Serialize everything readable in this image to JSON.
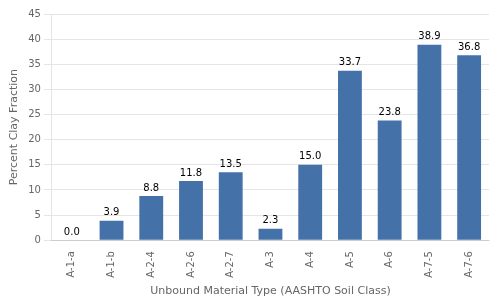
{
  "chart_data": {
    "type": "bar",
    "categories": [
      "A-1-a",
      "A-1-b",
      "A-2-4",
      "A-2-6",
      "A-2-7",
      "A-3",
      "A-4",
      "A-5",
      "A-6",
      "A-7-5",
      "A-7-6"
    ],
    "values": [
      0.0,
      3.9,
      8.8,
      11.8,
      13.5,
      2.3,
      15.0,
      33.7,
      23.8,
      38.9,
      36.8
    ],
    "value_labels": [
      "0.0",
      "3.9",
      "8.8",
      "11.8",
      "13.5",
      "2.3",
      "15.0",
      "33.7",
      "23.8",
      "38.9",
      "36.8"
    ],
    "data_labels": true,
    "color": "#4472a8",
    "xlabel": "Unbound Material Type (AASHTO Soil Class)",
    "ylabel": "Percent Clay Fraction",
    "ylim": [
      0,
      45
    ],
    "yticks": [
      0,
      5,
      10,
      15,
      20,
      25,
      30,
      35,
      40,
      45
    ],
    "grid": true
  }
}
